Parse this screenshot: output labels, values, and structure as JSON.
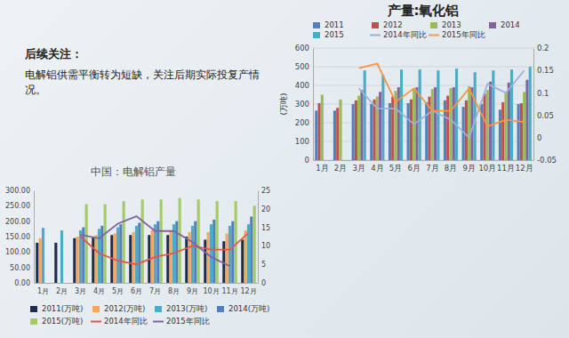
{
  "notes": {
    "heading": "后续关注：",
    "text": "电解铝供需平衡转为短缺，关注后期实际投复产情况。"
  },
  "chart_data": [
    {
      "type": "bar",
      "title": "产量:氧化铝",
      "y_label": "(万吨)",
      "categories": [
        "1月",
        "2月",
        "3月",
        "4月",
        "5月",
        "6月",
        "7月",
        "8月",
        "9月",
        "10月",
        "11月",
        "12月"
      ],
      "series": [
        {
          "name": "2011",
          "color": "#4f81bd",
          "values": [
            265,
            265,
            300,
            300,
            305,
            305,
            310,
            320,
            285,
            300,
            270,
            300
          ]
        },
        {
          "name": "2012",
          "color": "#c0504d",
          "values": [
            305,
            280,
            320,
            325,
            340,
            325,
            340,
            345,
            320,
            355,
            310,
            305
          ]
        },
        {
          "name": "2013",
          "color": "#9bbb59",
          "values": [
            350,
            325,
            345,
            340,
            370,
            385,
            380,
            385,
            395,
            375,
            360,
            365
          ]
        },
        {
          "name": "2014",
          "color": "#8064a2",
          "values": [
            null,
            null,
            375,
            365,
            390,
            390,
            390,
            390,
            390,
            420,
            415,
            430
          ]
        },
        {
          "name": "2015",
          "color": "#4bacc6",
          "values": [
            null,
            null,
            480,
            455,
            485,
            485,
            480,
            490,
            470,
            480,
            485,
            500
          ]
        },
        {
          "name": "2014年同比",
          "color": "#9bb3d9",
          "type": "line",
          "axis": "y2",
          "values": [
            null,
            null,
            0.11,
            0.065,
            0.065,
            0.03,
            0.06,
            0.04,
            0.0,
            0.12,
            0.1,
            0.15
          ]
        },
        {
          "name": "2015年同比",
          "color": "#f79646",
          "type": "line",
          "axis": "y2",
          "values": [
            null,
            null,
            0.155,
            0.165,
            0.08,
            0.11,
            0.06,
            0.06,
            0.11,
            0.025,
            0.04,
            0.035
          ]
        }
      ],
      "ylim": [
        0,
        600
      ],
      "yticks": [
        0,
        100,
        200,
        300,
        400,
        500,
        600
      ],
      "y2lim": [
        -0.05,
        0.2
      ],
      "y2ticks": [
        -0.05,
        0,
        0.05,
        0.1,
        0.15,
        0.2
      ],
      "grid": true,
      "legend": "top"
    },
    {
      "type": "bar",
      "title": "中国：电解铝产量",
      "categories": [
        "1月",
        "2月",
        "3月",
        "4月",
        "5月",
        "6月",
        "7月",
        "8月",
        "9月",
        "10月",
        "11月",
        "12月"
      ],
      "series": [
        {
          "name": "2011(万吨)",
          "color": "#1f2d4d",
          "values": [
            130,
            130,
            145,
            150,
            155,
            155,
            155,
            155,
            150,
            140,
            135,
            140
          ]
        },
        {
          "name": "2012(万吨)",
          "color": "#f9a65a",
          "values": [
            145,
            null,
            150,
            155,
            160,
            165,
            170,
            170,
            165,
            165,
            160,
            170
          ]
        },
        {
          "name": "2013(万吨)",
          "color": "#4bacc6",
          "values": [
            178,
            170,
            170,
            175,
            180,
            185,
            190,
            190,
            185,
            190,
            185,
            190
          ]
        },
        {
          "name": "2014(万吨)",
          "color": "#4f81bd",
          "values": [
            null,
            null,
            180,
            185,
            190,
            195,
            200,
            200,
            200,
            205,
            200,
            215
          ]
        },
        {
          "name": "2015(万吨)",
          "color": "#a6c96a",
          "values": [
            null,
            null,
            255,
            255,
            265,
            270,
            270,
            275,
            270,
            265,
            265,
            250
          ]
        },
        {
          "name": "2014年同比",
          "color": "#e0574f",
          "type": "line",
          "axis": "y2",
          "values": [
            null,
            null,
            12.5,
            8,
            6,
            5,
            7,
            8,
            10,
            9,
            9,
            13.5
          ]
        },
        {
          "name": "2015年同比",
          "color": "#8064a2",
          "type": "line",
          "axis": "y2",
          "values": [
            null,
            null,
            13,
            12,
            16,
            18,
            14,
            14,
            11,
            7,
            4.5,
            null
          ]
        }
      ],
      "ylim": [
        0,
        300
      ],
      "yticks": [
        {
          "value": 0,
          "label": "0.00"
        },
        {
          "value": 50,
          "label": "50.00"
        },
        {
          "value": 100,
          "label": "100.00"
        },
        {
          "value": 150,
          "label": "150.00"
        },
        {
          "value": 200,
          "label": "200.00"
        },
        {
          "value": 250,
          "label": "250.00"
        },
        {
          "value": 300,
          "label": "300.00"
        }
      ],
      "y2lim": [
        0,
        25
      ],
      "y2ticks": [
        0,
        5,
        10,
        15,
        20,
        25
      ],
      "grid": false,
      "legend": "bottom"
    }
  ]
}
